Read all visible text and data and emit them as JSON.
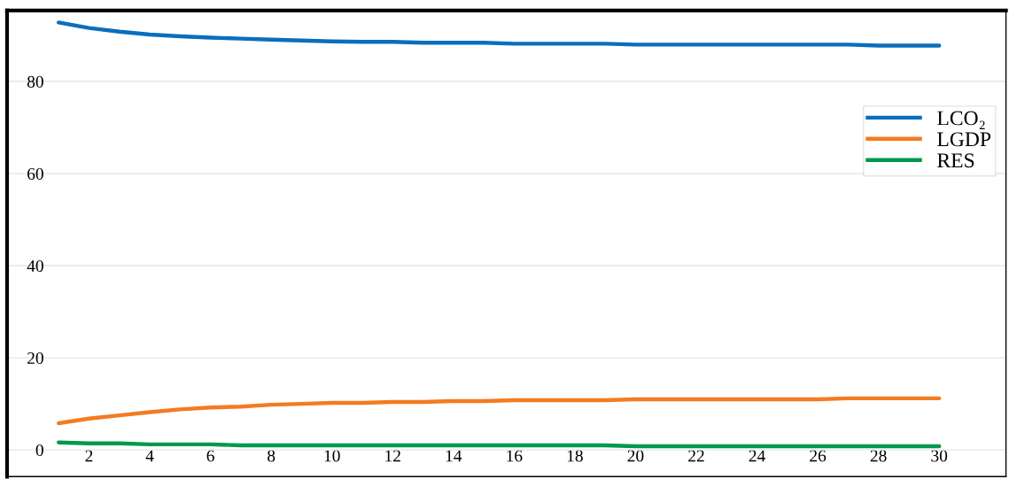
{
  "chart_data": {
    "type": "line",
    "x": [
      1,
      2,
      3,
      4,
      5,
      6,
      7,
      8,
      9,
      10,
      11,
      12,
      13,
      14,
      15,
      16,
      17,
      18,
      19,
      20,
      21,
      22,
      23,
      24,
      25,
      26,
      27,
      28,
      29,
      30
    ],
    "series": [
      {
        "name": "LCO₂",
        "color": "#0a6ebd",
        "values": [
          92.8,
          91.6,
          90.8,
          90.2,
          89.8,
          89.5,
          89.3,
          89.1,
          88.9,
          88.7,
          88.6,
          88.6,
          88.4,
          88.4,
          88.4,
          88.2,
          88.2,
          88.2,
          88.2,
          88.0,
          88.0,
          88.0,
          88.0,
          88.0,
          88.0,
          88.0,
          88.0,
          87.8,
          87.8,
          87.8
        ]
      },
      {
        "name": "LGDP",
        "color": "#f47b20",
        "values": [
          5.8,
          6.8,
          7.5,
          8.2,
          8.8,
          9.2,
          9.4,
          9.8,
          10.0,
          10.2,
          10.2,
          10.4,
          10.4,
          10.6,
          10.6,
          10.8,
          10.8,
          10.8,
          10.8,
          11.0,
          11.0,
          11.0,
          11.0,
          11.0,
          11.0,
          11.0,
          11.2,
          11.2,
          11.2,
          11.2
        ]
      },
      {
        "name": "RES",
        "color": "#00994c",
        "values": [
          1.6,
          1.4,
          1.4,
          1.2,
          1.2,
          1.2,
          1.0,
          1.0,
          1.0,
          1.0,
          1.0,
          1.0,
          1.0,
          1.0,
          1.0,
          1.0,
          1.0,
          1.0,
          1.0,
          0.8,
          0.8,
          0.8,
          0.8,
          0.8,
          0.8,
          0.8,
          0.8,
          0.8,
          0.8,
          0.8
        ]
      }
    ],
    "xlim": [
      -0.7,
      32.2
    ],
    "xticks": [
      2,
      4,
      6,
      8,
      10,
      12,
      14,
      16,
      18,
      20,
      22,
      24,
      26,
      28,
      30
    ],
    "ylim": [
      -5.8,
      95.4
    ],
    "yticks": [
      0,
      20,
      40,
      60,
      80
    ],
    "grid": "y",
    "legend": "right",
    "marker": "none",
    "line_style": "solid"
  }
}
